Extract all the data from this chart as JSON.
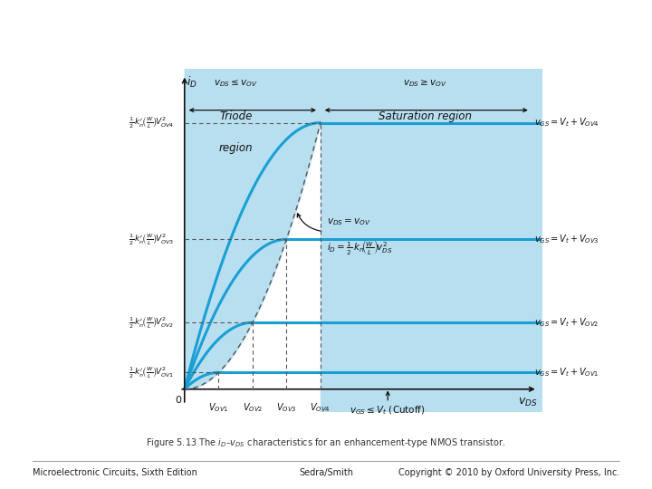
{
  "fig_width": 7.2,
  "fig_height": 5.4,
  "dpi": 100,
  "bg_color": "#ffffff",
  "sat_bg_color": "#b8dff0",
  "curve_color": "#1a9fd4",
  "curve_lw": 2.2,
  "dashed_color": "#555555",
  "axis_color": "#111111",
  "text_color": "#111111",
  "VOV": [
    1.0,
    2.0,
    3.0,
    4.0
  ],
  "scale": 0.27,
  "x_max": 10.5,
  "y_max": 5.2,
  "caption": "Figure 5.13 The $i_D$–$v_{DS}$ characteristics for an enhancement-type NMOS transistor.",
  "footer_left": "Microelectronic Circuits, Sixth Edition",
  "footer_center": "Sedra/Smith",
  "footer_right": "Copyright © 2010 by Oxford University Press, Inc."
}
